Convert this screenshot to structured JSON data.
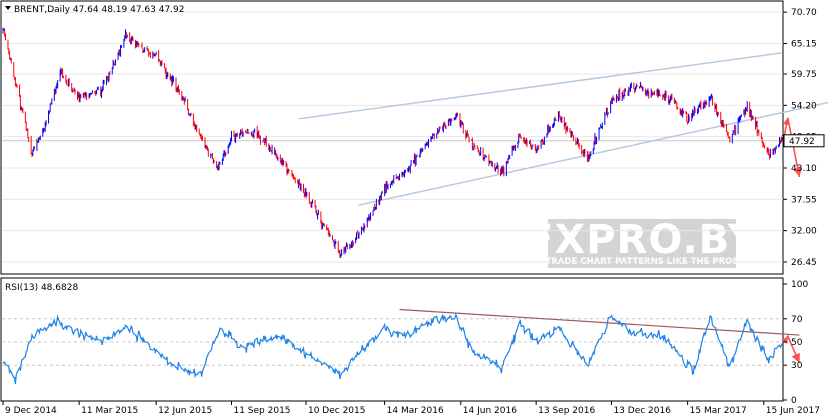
{
  "chart_data": [
    {
      "type": "line",
      "header": "BRENT,Daily  47.64 48.19 47.63 47.92",
      "current_price_label": "47.92",
      "current_price": 47.92,
      "ylim": [
        24.5,
        72.5
      ],
      "y_ticks": [
        "70.70",
        "65.15",
        "59.75",
        "54.20",
        "48.65",
        "43.10",
        "37.55",
        "32.00",
        "26.45"
      ],
      "y_tick_values": [
        70.7,
        65.15,
        59.75,
        54.2,
        48.65,
        43.1,
        37.55,
        32.0,
        26.45
      ],
      "x_ticks": [
        "9 Dec 2014",
        "11 Mar 2015",
        "12 Jun 2015",
        "11 Sep 2015",
        "10 Dec 2015",
        "14 Mar 2016",
        "14 Jun 2016",
        "13 Sep 2016",
        "13 Dec 2016",
        "15 Mar 2017",
        "15 Jun 2017"
      ],
      "x": [
        "2014-12-09",
        "2015-01-13",
        "2015-01-28",
        "2015-02-16",
        "2015-03-11",
        "2015-04-08",
        "2015-05-06",
        "2015-06-12",
        "2015-07-08",
        "2015-08-24",
        "2015-09-11",
        "2015-10-09",
        "2015-11-06",
        "2015-12-10",
        "2016-01-20",
        "2016-02-11",
        "2016-03-14",
        "2016-04-11",
        "2016-05-10",
        "2016-06-08",
        "2016-06-28",
        "2016-08-02",
        "2016-08-24",
        "2016-09-13",
        "2016-10-10",
        "2016-11-14",
        "2016-12-13",
        "2017-01-06",
        "2017-02-15",
        "2017-03-15",
        "2017-04-12",
        "2017-05-05",
        "2017-05-25",
        "2017-06-21",
        "2017-07-07"
      ],
      "values": [
        67.5,
        46.0,
        50.5,
        60.0,
        55.5,
        57.0,
        66.5,
        63.0,
        57.0,
        43.0,
        48.5,
        49.5,
        45.0,
        38.5,
        28.0,
        31.0,
        39.5,
        43.0,
        48.5,
        52.5,
        47.0,
        42.5,
        48.5,
        46.0,
        52.5,
        44.5,
        55.0,
        57.5,
        56.0,
        52.0,
        55.5,
        48.0,
        54.0,
        45.5,
        47.92
      ],
      "annotations": [
        {
          "type": "trend-channel-upper",
          "points": [
            [
              "2015-12-01",
              51.8
            ],
            [
              "2017-07-07",
              63.5
            ]
          ]
        },
        {
          "type": "trend-channel-lower",
          "points": [
            [
              "2016-02-11",
              36.5
            ],
            [
              "2017-09-01",
              54.7
            ]
          ]
        },
        {
          "type": "forecast-arrow",
          "points": [
            [
              "2017-07-10",
              49.0
            ],
            [
              "2017-07-14",
              52.0
            ],
            [
              "2017-07-28",
              41.5
            ]
          ]
        }
      ],
      "watermark_title": "FXPRO.BY",
      "watermark_tagline": "TRADE CHART PATTERNS LIKE THE PROS",
      "colors": {
        "up": "#0000ff",
        "down": "#ff0000",
        "channel": "#b4c8de",
        "arrow": "#ff5050",
        "watermark": "#d4d4d4"
      }
    },
    {
      "type": "line",
      "header": "RSI(13) 48.6828",
      "ylim": [
        0,
        100
      ],
      "y_ticks": [
        "100",
        "70",
        "50",
        "30",
        "0"
      ],
      "y_tick_values": [
        100,
        70,
        50,
        30,
        0
      ],
      "grid_levels": [
        70,
        50,
        30
      ],
      "x": [
        "2014-12-09",
        "2014-12-24",
        "2015-01-13",
        "2015-02-09",
        "2015-03-11",
        "2015-04-08",
        "2015-05-06",
        "2015-06-12",
        "2015-07-08",
        "2015-08-04",
        "2015-08-28",
        "2015-09-24",
        "2015-11-06",
        "2015-12-10",
        "2016-01-20",
        "2016-02-11",
        "2016-03-14",
        "2016-04-11",
        "2016-05-10",
        "2016-06-08",
        "2016-06-28",
        "2016-08-02",
        "2016-08-24",
        "2016-09-13",
        "2016-10-10",
        "2016-11-14",
        "2016-12-13",
        "2017-01-06",
        "2017-02-15",
        "2017-03-22",
        "2017-04-12",
        "2017-05-05",
        "2017-05-25",
        "2017-06-21",
        "2017-07-07"
      ],
      "values": [
        35,
        18,
        55,
        68,
        58,
        50,
        63,
        42,
        28,
        22,
        62,
        45,
        55,
        40,
        22,
        40,
        62,
        55,
        68,
        72,
        42,
        28,
        65,
        50,
        62,
        30,
        72,
        58,
        55,
        25,
        72,
        28,
        68,
        35,
        48.68
      ],
      "color": "#1e82e6",
      "annotations": [
        {
          "type": "trend-line",
          "points": [
            [
              "2016-04-01",
              78
            ],
            [
              "2017-07-28",
              56
            ]
          ]
        },
        {
          "type": "forecast-arrow",
          "points": [
            [
              "2017-07-10",
              50
            ],
            [
              "2017-07-14",
              55
            ],
            [
              "2017-07-28",
              32
            ]
          ]
        }
      ]
    }
  ]
}
